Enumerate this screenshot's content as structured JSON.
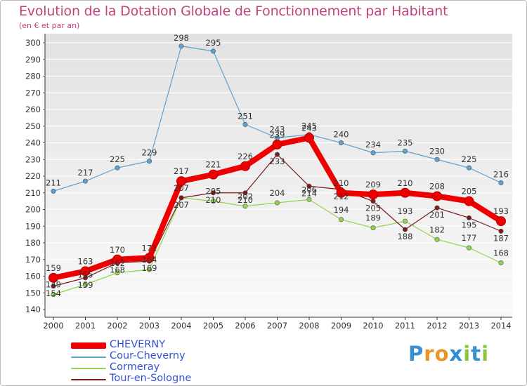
{
  "header": {
    "title": "Evolution de la Dotation Globale de Fonctionnement par Habitant",
    "subtitle": "(en € et par an)"
  },
  "logo": {
    "text": "Proxiti"
  },
  "colors": {
    "title": "#c2427e",
    "legend_text": "#3452d9",
    "axis": "#333333",
    "plot_top": "#e2e2e2",
    "plot_bottom": "#f9f9f9"
  },
  "chart_data": {
    "type": "line",
    "title": "Evolution de la Dotation Globale de Fonctionnement par Habitant",
    "subtitle": "(en € et par an)",
    "xlabel": "",
    "ylabel": "",
    "categories": [
      "2000",
      "2001",
      "2002",
      "2003",
      "2004",
      "2005",
      "2006",
      "2007",
      "2008",
      "2009",
      "2010",
      "2011",
      "2012",
      "2013",
      "2014"
    ],
    "ylim": [
      140,
      300
    ],
    "yticks": [
      140,
      150,
      160,
      170,
      180,
      190,
      200,
      210,
      220,
      230,
      240,
      250,
      260,
      270,
      280,
      290,
      300
    ],
    "legend_position": "bottom-left",
    "series": [
      {
        "name": "CHEVERNY",
        "color": "#ee0000",
        "values": [
          159,
          163,
          170,
          171,
          217,
          221,
          226,
          239,
          243,
          210,
          209,
          210,
          208,
          205,
          193
        ]
      },
      {
        "name": "Cour-Cheverny",
        "color": "#5aa3d2",
        "values": [
          211,
          217,
          225,
          229,
          298,
          295,
          251,
          243,
          245,
          240,
          234,
          235,
          230,
          225,
          216
        ]
      },
      {
        "name": "Cormeray",
        "color": "#8fd64d",
        "values": [
          149,
          155,
          162,
          164,
          207,
          205,
          202,
          204,
          206,
          194,
          189,
          193,
          182,
          177,
          168
        ]
      },
      {
        "name": "Tour-en-Sologne",
        "color": "#7a1a1a",
        "values": [
          154,
          159,
          168,
          169,
          207,
          210,
          210,
          233,
          214,
          212,
          205,
          188,
          201,
          195,
          187
        ]
      }
    ]
  }
}
